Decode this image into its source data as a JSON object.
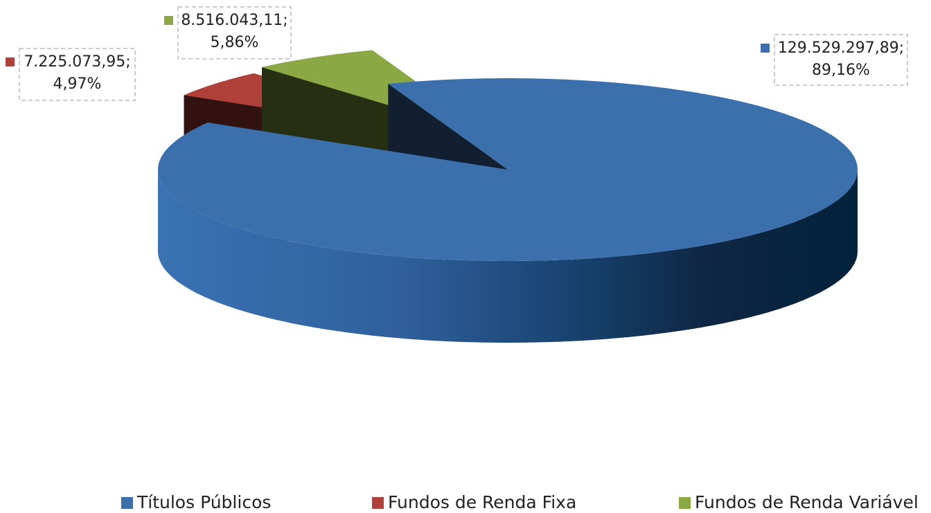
{
  "chart_data": {
    "type": "pie3d",
    "categories": [
      "Títulos Públicos",
      "Fundos de Renda Fixa",
      "Fundos de Renda Variável"
    ],
    "values": [
      129529297.89,
      7225073.95,
      8516043.11
    ],
    "value_labels": [
      "129.529.297,89;",
      "7.225.073,95;",
      "8.516.043,11;"
    ],
    "percents": [
      89.16,
      4.97,
      5.86
    ],
    "percent_labels": [
      "89,16%",
      "4,97%",
      "5,86%"
    ],
    "colors": [
      "#3b70ad",
      "#b0413a",
      "#8aa843"
    ],
    "legend": "bottom"
  }
}
